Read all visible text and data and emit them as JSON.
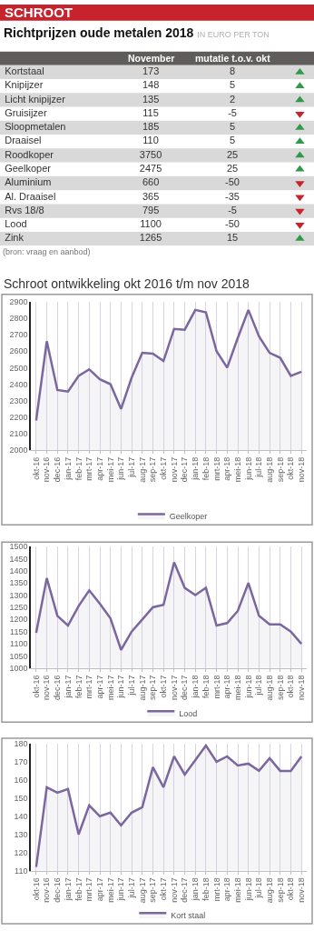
{
  "chart_data": [
    {
      "type": "other",
      "title": "SCHROOT"
    },
    {
      "type": "heatmap",
      "title": "Richtprijzen oude metalen 2018",
      "subtitle": "IN EURO PER TON",
      "categories": [
        "November",
        "mutatie t.o.v. okt"
      ],
      "y_categories": [
        "Kortstaal",
        "Knipijzer",
        "Licht knipijzer",
        "Gruisijzer",
        "Sloopmetalen",
        "Draaisel",
        "Roodkoper",
        "Geelkoper",
        "Aluminium",
        "Al. Draaisel",
        "Rvs 18/8",
        "Lood",
        "Zink"
      ],
      "cells": [
        [
          173,
          8
        ],
        [
          148,
          5
        ],
        [
          135,
          2
        ],
        [
          115,
          -5
        ],
        [
          185,
          5
        ],
        [
          110,
          5
        ],
        [
          3750,
          25
        ],
        [
          2475,
          25
        ],
        [
          660,
          -50
        ],
        [
          365,
          -35
        ],
        [
          795,
          -5
        ],
        [
          1100,
          -50
        ],
        [
          1265,
          15
        ]
      ],
      "data_labels": true,
      "annotations": [
        "(bron: vraag en aanbod)"
      ]
    },
    {
      "type": "area",
      "title": "Schroot ontwikkeling okt 2016 t/m nov 2018",
      "categories": [
        "okt-16",
        "nov-16",
        "dec-16",
        "jan-17",
        "feb-17",
        "mrt-17",
        "apr-17",
        "mei-17",
        "jun-17",
        "jul-17",
        "aug-17",
        "sep-17",
        "okt-17",
        "nov-17",
        "dec-17",
        "jan-18",
        "feb-18",
        "mrt-18",
        "apr-18",
        "mei-18",
        "jun-18",
        "jul-18",
        "aug-18",
        "sep-18",
        "okt-18",
        "nov-18"
      ],
      "series": [
        {
          "name": "Geelkoper",
          "color": "#7b679f",
          "values": [
            2180,
            2660,
            2365,
            2355,
            2450,
            2490,
            2430,
            2400,
            2250,
            2440,
            2590,
            2585,
            2540,
            2735,
            2730,
            2850,
            2835,
            2600,
            2500,
            2680,
            2850,
            2690,
            2590,
            2560,
            2450,
            2475
          ]
        }
      ],
      "ylim": [
        2000,
        2900
      ],
      "yticks": [
        2000,
        2100,
        2200,
        2300,
        2400,
        2500,
        2600,
        2700,
        2800,
        2900
      ],
      "grid": "x",
      "legend": "bottom",
      "marker": "none",
      "line_style": "solid"
    },
    {
      "type": "area",
      "categories": [
        "okt-16",
        "nov-16",
        "dec-16",
        "jan-17",
        "feb-17",
        "mrt-17",
        "apr-17",
        "mei-17",
        "jun-17",
        "jul-17",
        "aug-17",
        "sep-17",
        "okt-17",
        "nov-17",
        "dec-17",
        "jan-18",
        "feb-18",
        "mrt-18",
        "apr-18",
        "mei-18",
        "jun-18",
        "jul-18",
        "aug-18",
        "sep-18",
        "okt-18",
        "nov-18"
      ],
      "series": [
        {
          "name": "Lood",
          "color": "#7b679f",
          "values": [
            1145,
            1370,
            1215,
            1175,
            1255,
            1320,
            1265,
            1205,
            1075,
            1150,
            1200,
            1250,
            1260,
            1435,
            1330,
            1300,
            1330,
            1175,
            1185,
            1235,
            1350,
            1215,
            1180,
            1180,
            1150,
            1100
          ]
        }
      ],
      "ylim": [
        1000,
        1500
      ],
      "yticks": [
        1000,
        1050,
        1100,
        1150,
        1200,
        1250,
        1300,
        1350,
        1400,
        1450,
        1500
      ],
      "grid": "x",
      "legend": "bottom",
      "marker": "none",
      "line_style": "solid"
    },
    {
      "type": "area",
      "categories": [
        "okt-16",
        "nov-16",
        "dec-16",
        "jan-17",
        "feb-17",
        "mrt-17",
        "apr-17",
        "mei-17",
        "jun-17",
        "jul-17",
        "aug-17",
        "sep-17",
        "okt-17",
        "nov-17",
        "dec-17",
        "jan-18",
        "feb-18",
        "mrt-18",
        "apr-18",
        "mei-18",
        "jun-18",
        "jul-18",
        "aug-18",
        "sep-18",
        "okt-18",
        "nov-18"
      ],
      "series": [
        {
          "name": "Kort staal",
          "color": "#7b679f",
          "values": [
            112,
            156,
            153,
            155,
            130,
            146,
            140,
            142,
            135,
            142,
            145,
            167,
            156,
            173,
            163,
            171,
            179,
            170,
            173,
            168,
            169,
            165,
            172,
            165,
            165,
            173
          ]
        }
      ],
      "ylim": [
        110,
        180
      ],
      "yticks": [
        110,
        120,
        130,
        140,
        150,
        160,
        170,
        180
      ],
      "grid": "x",
      "legend": "bottom",
      "marker": "none",
      "line_style": "solid"
    }
  ]
}
